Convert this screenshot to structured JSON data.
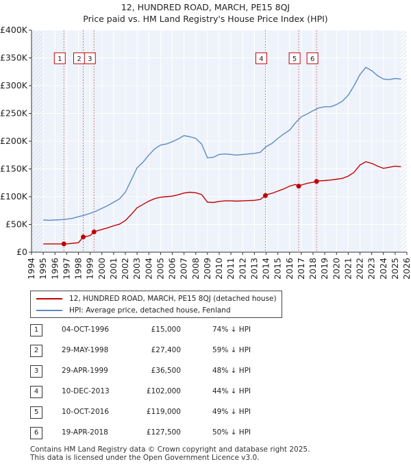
{
  "title_line1": "12, HUNDRED ROAD, MARCH, PE15 8QJ",
  "title_line2": "Price paid vs. HM Land Registry's House Price Index (HPI)",
  "chart_data": {
    "type": "line",
    "title": "12, HUNDRED ROAD, MARCH, PE15 8QJ — Price paid vs. HM Land Registry's House Price Index (HPI)",
    "xlim": [
      1994,
      2026
    ],
    "ylim": [
      0,
      400000
    ],
    "x_ticks": [
      1994,
      1995,
      1996,
      1997,
      1998,
      1999,
      2000,
      2001,
      2002,
      2003,
      2004,
      2005,
      2006,
      2007,
      2008,
      2009,
      2010,
      2011,
      2012,
      2013,
      2014,
      2015,
      2016,
      2017,
      2018,
      2019,
      2020,
      2021,
      2022,
      2023,
      2024,
      2025,
      2026
    ],
    "y_ticks": [
      {
        "value": 0,
        "label": "£0"
      },
      {
        "value": 50000,
        "label": "£50K"
      },
      {
        "value": 100000,
        "label": "£100K"
      },
      {
        "value": 150000,
        "label": "£150K"
      },
      {
        "value": 200000,
        "label": "£200K"
      },
      {
        "value": 250000,
        "label": "£250K"
      },
      {
        "value": 300000,
        "label": "£300K"
      },
      {
        "value": 350000,
        "label": "£350K"
      },
      {
        "value": 400000,
        "label": "£400K"
      }
    ],
    "grid": true,
    "series": [
      {
        "name": "HPI: Average price, detached house, Fenland",
        "color": "#5b8ac6",
        "x": [
          1995,
          1995.5,
          1996,
          1996.5,
          1997,
          1997.5,
          1998,
          1998.5,
          1999,
          1999.5,
          2000,
          2000.5,
          2001,
          2001.5,
          2002,
          2002.5,
          2003,
          2003.5,
          2004,
          2004.5,
          2005,
          2005.5,
          2006,
          2006.5,
          2007,
          2007.5,
          2008,
          2008.5,
          2009,
          2009.5,
          2010,
          2010.5,
          2011,
          2011.5,
          2012,
          2012.5,
          2013,
          2013.5,
          2014,
          2014.5,
          2015,
          2015.5,
          2016,
          2016.5,
          2017,
          2017.5,
          2018,
          2018.5,
          2019,
          2019.5,
          2020,
          2020.5,
          2021,
          2021.5,
          2022,
          2022.5,
          2023,
          2023.5,
          2024,
          2024.5,
          2025,
          2025.5
        ],
        "values": [
          58000,
          57500,
          58000,
          58500,
          59500,
          61000,
          64000,
          66500,
          70000,
          74000,
          79000,
          84000,
          90000,
          96000,
          108000,
          130000,
          152000,
          162000,
          175000,
          186000,
          193000,
          195000,
          199000,
          204000,
          210000,
          208000,
          205000,
          195000,
          170000,
          171000,
          176000,
          177000,
          176000,
          175000,
          176000,
          177000,
          178000,
          180000,
          190000,
          196000,
          205000,
          213000,
          220000,
          233000,
          244000,
          249000,
          255000,
          260000,
          262000,
          262000,
          266000,
          272000,
          283000,
          300000,
          320000,
          333000,
          327000,
          318000,
          312000,
          311000,
          313000,
          312000
        ]
      },
      {
        "name": "12, HUNDRED ROAD, MARCH, PE15 8QJ (detached house)",
        "color": "#c00000",
        "x": [
          1995,
          1995.5,
          1996,
          1996.5,
          1996.76,
          1997,
          1997.5,
          1998,
          1998.41,
          1998.7,
          1999,
          1999.33,
          1999.6,
          2000,
          2000.5,
          2001,
          2001.5,
          2002,
          2002.5,
          2003,
          2003.5,
          2004,
          2004.5,
          2005,
          2005.5,
          2006,
          2006.5,
          2007,
          2007.5,
          2008,
          2008.5,
          2009,
          2009.5,
          2010,
          2010.5,
          2011,
          2011.5,
          2012,
          2012.5,
          2013,
          2013.5,
          2013.94,
          2014,
          2014.5,
          2015,
          2015.5,
          2016,
          2016.5,
          2016.78,
          2017,
          2017.5,
          2018,
          2018.3,
          2018.5,
          2019,
          2019.5,
          2020,
          2020.5,
          2021,
          2021.5,
          2022,
          2022.5,
          2023,
          2023.5,
          2024,
          2024.5,
          2025,
          2025.5
        ],
        "values": [
          15000,
          15000,
          15000,
          15000,
          15000,
          15000,
          16000,
          17000,
          27400,
          28500,
          30000,
          36500,
          38500,
          41000,
          44000,
          47500,
          50500,
          57000,
          68000,
          80000,
          86000,
          92000,
          96500,
          99000,
          100000,
          101000,
          103500,
          106500,
          108000,
          107000,
          104000,
          90000,
          89500,
          91500,
          92500,
          92500,
          92000,
          92500,
          93000,
          93500,
          95000,
          102000,
          103500,
          106000,
          110000,
          114000,
          119000,
          122000,
          119000,
          121000,
          124000,
          126000,
          127500,
          128500,
          129000,
          130000,
          131500,
          133000,
          137000,
          144000,
          157000,
          163000,
          160000,
          155000,
          151000,
          153000,
          155000,
          154000
        ]
      }
    ],
    "sales": [
      {
        "num": "1",
        "x": 1996.76,
        "value": 15000
      },
      {
        "num": "2",
        "x": 1998.41,
        "value": 27400
      },
      {
        "num": "3",
        "x": 1999.33,
        "value": 36500
      },
      {
        "num": "4",
        "x": 2013.94,
        "value": 102000
      },
      {
        "num": "5",
        "x": 2016.78,
        "value": 119000
      },
      {
        "num": "6",
        "x": 2018.3,
        "value": 127500
      }
    ]
  },
  "legend": {
    "property": "12, HUNDRED ROAD, MARCH, PE15 8QJ (detached house)",
    "hpi": "HPI: Average price, detached house, Fenland",
    "property_color": "#c00000",
    "hpi_color": "#5b8ac6"
  },
  "sales_table": [
    {
      "num": "1",
      "date": "04-OCT-1996",
      "price": "£15,000",
      "hpi": "74% ↓ HPI"
    },
    {
      "num": "2",
      "date": "29-MAY-1998",
      "price": "£27,400",
      "hpi": "59% ↓ HPI"
    },
    {
      "num": "3",
      "date": "29-APR-1999",
      "price": "£36,500",
      "hpi": "48% ↓ HPI"
    },
    {
      "num": "4",
      "date": "10-DEC-2013",
      "price": "£102,000",
      "hpi": "44% ↓ HPI"
    },
    {
      "num": "5",
      "date": "10-OCT-2016",
      "price": "£119,000",
      "hpi": "49% ↓ HPI"
    },
    {
      "num": "6",
      "date": "19-APR-2018",
      "price": "£127,500",
      "hpi": "50% ↓ HPI"
    }
  ],
  "footer_line1": "Contains HM Land Registry data © Crown copyright and database right 2025.",
  "footer_line2": "This data is licensed under the Open Government Licence v3.0."
}
